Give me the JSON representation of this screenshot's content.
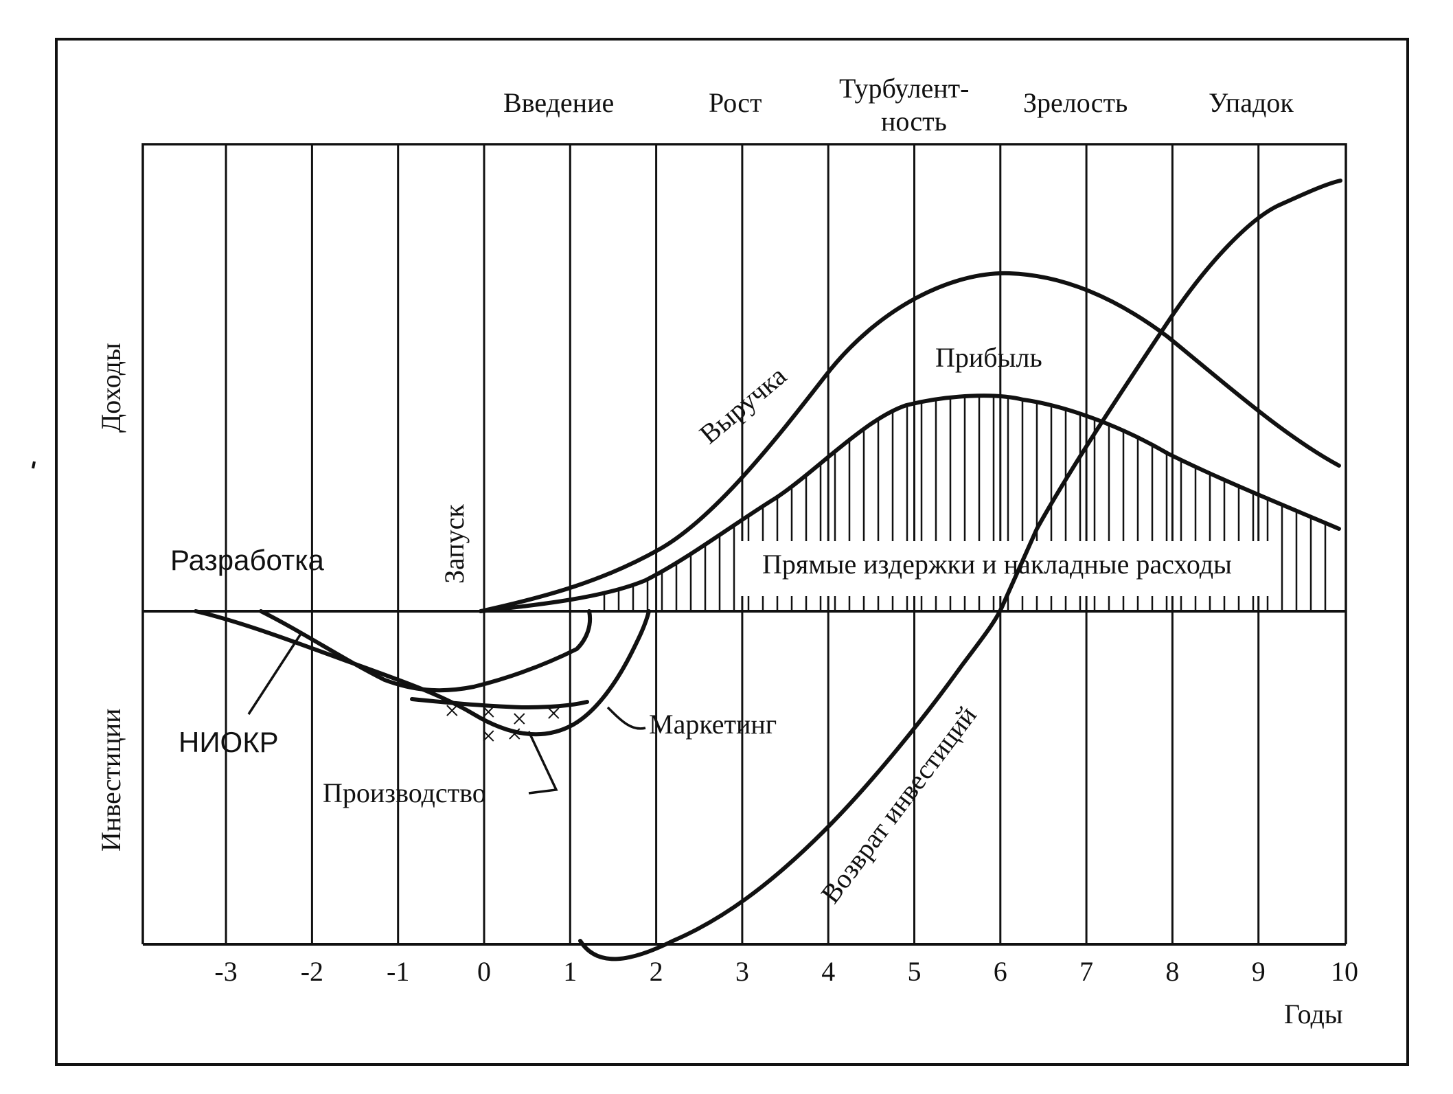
{
  "phases": {
    "introduction": "Введение",
    "growth": "Рост",
    "turbulence_line1": "Турбулент-",
    "turbulence_line2": "ность",
    "maturity": "Зрелость",
    "decline": "Упадок"
  },
  "axes": {
    "y_top_label": "Доходы",
    "y_bottom_label": "Инвестиции",
    "x_label": "Годы",
    "x_ticks": [
      "-3",
      "-2",
      "-1",
      "0",
      "1",
      "2",
      "3",
      "4",
      "5",
      "6",
      "7",
      "8",
      "9",
      "10"
    ]
  },
  "annotations": {
    "development": "Разработка",
    "launch": "Запуск",
    "revenue": "Выручка",
    "profit": "Прибыль",
    "costs": "Прямые издержки и накладные расходы",
    "rnd": "НИОКР",
    "marketing": "Маркетинг",
    "production": "Производство",
    "investment_return": "Возврат инвестиций"
  },
  "colors": {
    "ink": "#111111",
    "background": "#ffffff"
  }
}
